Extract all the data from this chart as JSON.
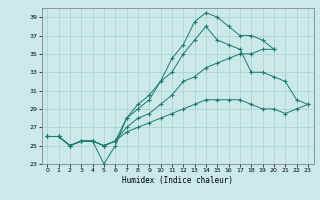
{
  "xlabel": "Humidex (Indice chaleur)",
  "background_color": "#cce9ea",
  "grid_color": "#aacfd1",
  "line_color": "#1a7a6e",
  "xlim": [
    -0.5,
    23.5
  ],
  "ylim": [
    23,
    40
  ],
  "yticks": [
    23,
    25,
    27,
    29,
    31,
    33,
    35,
    37,
    39
  ],
  "xticks": [
    0,
    1,
    2,
    3,
    4,
    5,
    6,
    7,
    8,
    9,
    10,
    11,
    12,
    13,
    14,
    15,
    16,
    17,
    18,
    19,
    20,
    21,
    22,
    23
  ],
  "series": [
    {
      "x": [
        0,
        1,
        2,
        3,
        4,
        5,
        6,
        7,
        8,
        9,
        10,
        11,
        12,
        13,
        14,
        15,
        16,
        17,
        18,
        19,
        20,
        21,
        22,
        23
      ],
      "y": [
        26,
        26,
        25,
        25.5,
        25.5,
        23,
        25,
        28,
        29,
        30,
        32,
        34.5,
        36,
        38.5,
        39.5,
        39,
        38,
        37,
        37,
        36.5,
        35.5,
        null,
        null,
        null
      ]
    },
    {
      "x": [
        0,
        1,
        2,
        3,
        4,
        5,
        6,
        7,
        8,
        9,
        10,
        11,
        12,
        13,
        14,
        15,
        16,
        17,
        18,
        19,
        20,
        21,
        22,
        23
      ],
      "y": [
        26,
        26,
        25,
        25.5,
        25.5,
        25,
        25.5,
        28,
        29.5,
        30.5,
        32,
        33,
        35,
        36.5,
        38,
        36.5,
        36,
        35.5,
        33,
        33,
        32.5,
        32,
        30,
        29.5
      ]
    },
    {
      "x": [
        0,
        1,
        2,
        3,
        4,
        5,
        6,
        7,
        8,
        9,
        10,
        11,
        12,
        13,
        14,
        15,
        16,
        17,
        18,
        19,
        20,
        21,
        22,
        23
      ],
      "y": [
        26,
        26,
        25,
        25.5,
        25.5,
        25,
        25.5,
        27,
        28,
        28.5,
        29.5,
        30.5,
        32,
        32.5,
        33.5,
        34,
        34.5,
        35,
        35,
        35.5,
        35.5,
        null,
        null,
        null
      ]
    },
    {
      "x": [
        0,
        1,
        2,
        3,
        4,
        5,
        6,
        7,
        8,
        9,
        10,
        11,
        12,
        13,
        14,
        15,
        16,
        17,
        18,
        19,
        20,
        21,
        22,
        23
      ],
      "y": [
        26,
        26,
        25,
        25.5,
        25.5,
        25,
        25.5,
        26.5,
        27,
        27.5,
        28,
        28.5,
        29,
        29.5,
        30,
        30,
        30,
        30,
        29.5,
        29,
        29,
        28.5,
        29,
        29.5
      ]
    }
  ]
}
